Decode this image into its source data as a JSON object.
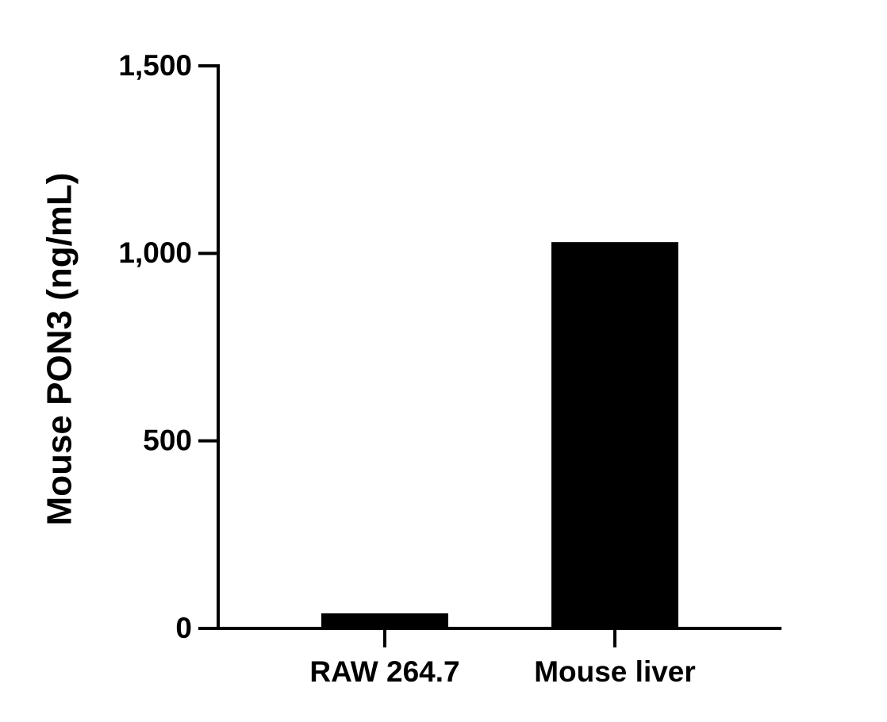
{
  "chart_data": {
    "type": "bar",
    "y_label": "Mouse PON3 (ng/mL)",
    "categories": [
      "RAW 264.7",
      "Mouse liver"
    ],
    "values": [
      40,
      1030
    ],
    "color": "#000000",
    "ylim": [
      0,
      1500
    ],
    "yticks": [
      0,
      500,
      {
        "value": 1000,
        "label": "1,000"
      },
      {
        "value": 1500,
        "label": "1,500"
      }
    ],
    "grid": false
  }
}
